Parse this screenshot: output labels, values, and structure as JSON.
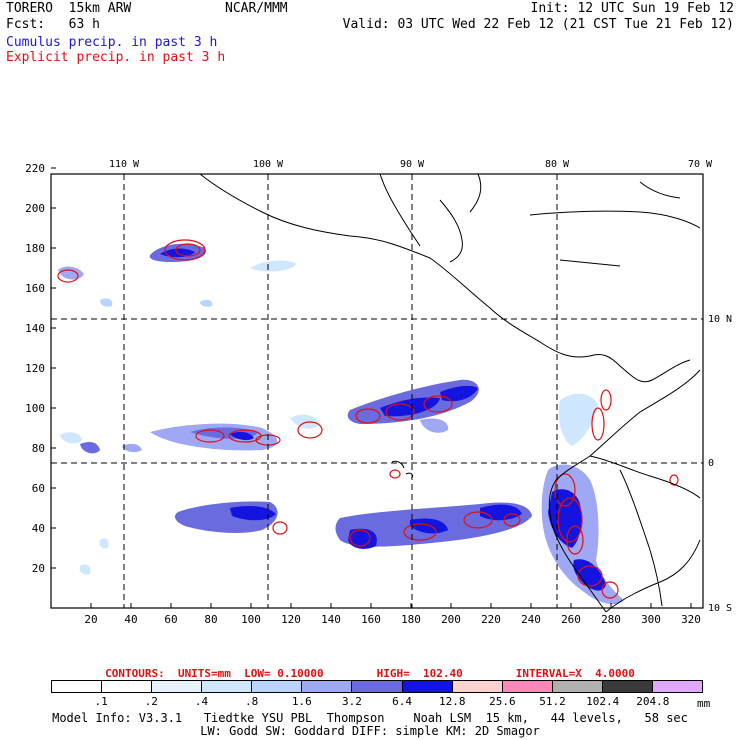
{
  "header": {
    "run_name": "TORERO  15km ARW",
    "forecast": "Fcst:   63 h",
    "center": "NCAR/MMM",
    "init": "Init: 12 UTC Sun 19 Feb 12",
    "valid": "Valid: 03 UTC Wed 22 Feb 12 (21 CST Tue 21 Feb 12)"
  },
  "legend": {
    "cumulus": "Cumulus precip. in past 3 h",
    "explicit": "Explicit precip. in past 3 h",
    "cumulus_color": "#1a1ad8",
    "explicit_color": "#e01010"
  },
  "map": {
    "x_ticks": [
      "20",
      "40",
      "60",
      "80",
      "100",
      "120",
      "140",
      "160",
      "180",
      "200",
      "220",
      "240",
      "260",
      "280",
      "300",
      "320"
    ],
    "y_ticks": [
      "20",
      "40",
      "60",
      "80",
      "100",
      "120",
      "140",
      "160",
      "180",
      "200",
      "220"
    ],
    "lon_labels": [
      "110 W",
      "100 W",
      "90 W",
      "80 W",
      "70 W"
    ],
    "lat_labels": [
      "10 N",
      "0",
      "10 S"
    ]
  },
  "contours": {
    "text": "CONTOURS:  UNITS=mm  LOW= 0.10000        HIGH=  102.40        INTERVAL=X  4.0000"
  },
  "colorbar": {
    "labels": [
      ".1",
      ".2",
      ".4",
      ".8",
      "1.6",
      "3.2",
      "6.4",
      "12.8",
      "25.6",
      "51.2",
      "102.4",
      "204.8"
    ],
    "unit": "mm",
    "colors": [
      "#ffffff",
      "#ffffff",
      "#e6f2ff",
      "#cfe6ff",
      "#b8d4ff",
      "#9fa8f5",
      "#6b6be0",
      "#1414e0",
      "#ffd2d2",
      "#ff88b8",
      "#b0b0b0",
      "#3a3a3a",
      "#e0a8ff"
    ]
  },
  "model_info": {
    "line1": "Model Info: V3.3.1   Tiedtke YSU PBL  Thompson    Noah LSM  15 km,   44 levels,   58 sec",
    "line2": "LW: Godd SW: Goddard DIFF: simple KM: 2D Smagor"
  }
}
